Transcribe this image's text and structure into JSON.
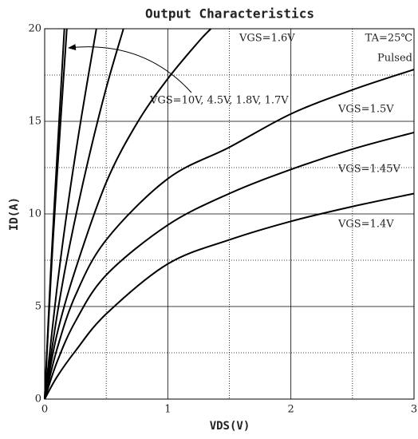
{
  "chart_data": {
    "type": "line",
    "title": "Output Characteristics",
    "x_label": "VDS(V)",
    "y_label": "ID(A)",
    "annotations": [
      "TA=25℃",
      "Pulsed",
      "VGS=10V, 4.5V, 1.8V, 1.7V"
    ],
    "xlim": [
      0,
      3
    ],
    "ylim": [
      0,
      20
    ],
    "xticks": [
      0,
      1,
      2,
      3
    ],
    "yticks": [
      0,
      5,
      10,
      15,
      20
    ],
    "minor_xticks": [
      0.5,
      1.5,
      2.5
    ],
    "minor_yticks": [
      2.5,
      7.5,
      12.5,
      17.5
    ],
    "grid": true,
    "series": [
      {
        "name": "VGS=1.4V",
        "color": "#000000",
        "x": [
          0,
          0.1,
          0.25,
          0.5,
          1,
          1.5,
          2,
          2.5,
          3
        ],
        "values": [
          0,
          1.2,
          2.6,
          4.6,
          7.3,
          8.6,
          9.6,
          10.4,
          11.1
        ]
      },
      {
        "name": "VGS=1.45V",
        "color": "#000000",
        "x": [
          0,
          0.1,
          0.25,
          0.5,
          1,
          1.5,
          2,
          2.5,
          3
        ],
        "values": [
          0,
          2,
          4.2,
          6.7,
          9.4,
          11.1,
          12.4,
          13.5,
          14.4
        ]
      },
      {
        "name": "VGS=1.5V",
        "color": "#000000",
        "x": [
          0,
          0.1,
          0.25,
          0.5,
          1,
          1.5,
          2,
          2.5,
          3
        ],
        "values": [
          0,
          2.7,
          5.6,
          8.6,
          11.9,
          13.6,
          15.4,
          16.7,
          17.8
        ]
      },
      {
        "name": "VGS=1.6V",
        "color": "#000000",
        "x": [
          0,
          0.1,
          0.25,
          0.5,
          0.75,
          1,
          1.25,
          1.35
        ],
        "values": [
          0,
          3.5,
          7,
          11.7,
          14.9,
          17.3,
          19.3,
          20
        ]
      },
      {
        "color": "#000000",
        "x": [
          0,
          0.1,
          0.2,
          0.35,
          0.5,
          0.64
        ],
        "values": [
          0,
          4.5,
          8.2,
          12.8,
          16.8,
          20
        ]
      },
      {
        "color": "#000000",
        "x": [
          0,
          0.1,
          0.2,
          0.3,
          0.42
        ],
        "values": [
          0,
          6,
          11,
          15.3,
          20
        ]
      },
      {
        "color": "#000000",
        "x": [
          0,
          0.05,
          0.1,
          0.18
        ],
        "values": [
          0,
          6.5,
          12,
          20
        ]
      },
      {
        "color": "#000000",
        "x": [
          0,
          0.05,
          0.1,
          0.16
        ],
        "values": [
          0,
          7,
          13,
          20
        ]
      }
    ]
  }
}
